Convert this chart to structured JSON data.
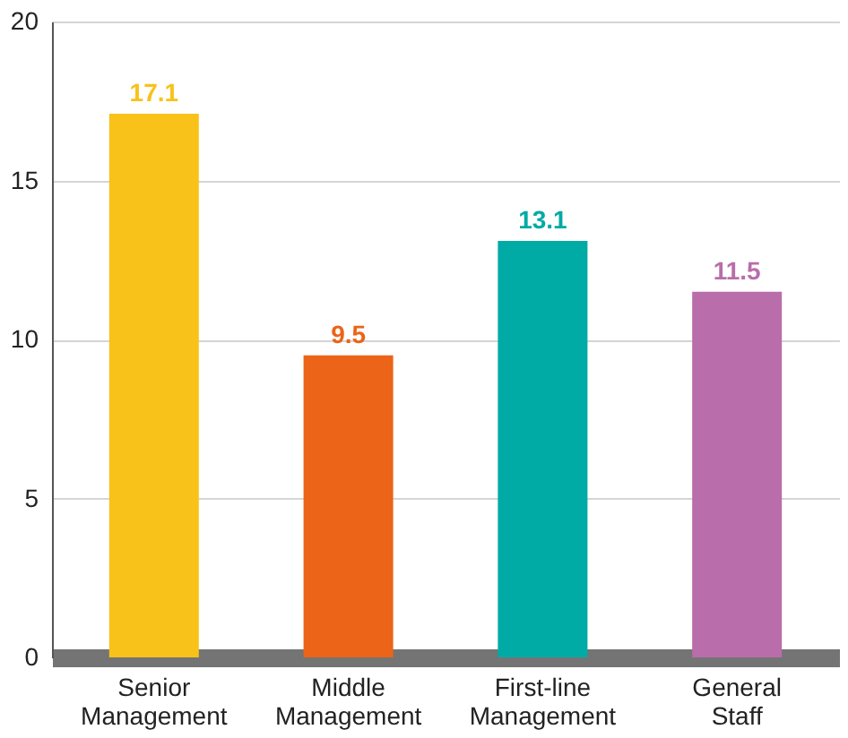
{
  "chart_data": {
    "type": "bar",
    "categories": [
      "Senior Management",
      "Middle Management",
      "First-line Management",
      "General Staff"
    ],
    "values": [
      17.1,
      9.5,
      13.1,
      11.5
    ],
    "colors": [
      "#f8c21a",
      "#eb6418",
      "#00aaa5",
      "#b96dab"
    ],
    "ylim": [
      0,
      20
    ],
    "yticks": [
      0,
      5,
      10,
      15,
      20
    ],
    "grid": "y",
    "data_labels": true
  }
}
